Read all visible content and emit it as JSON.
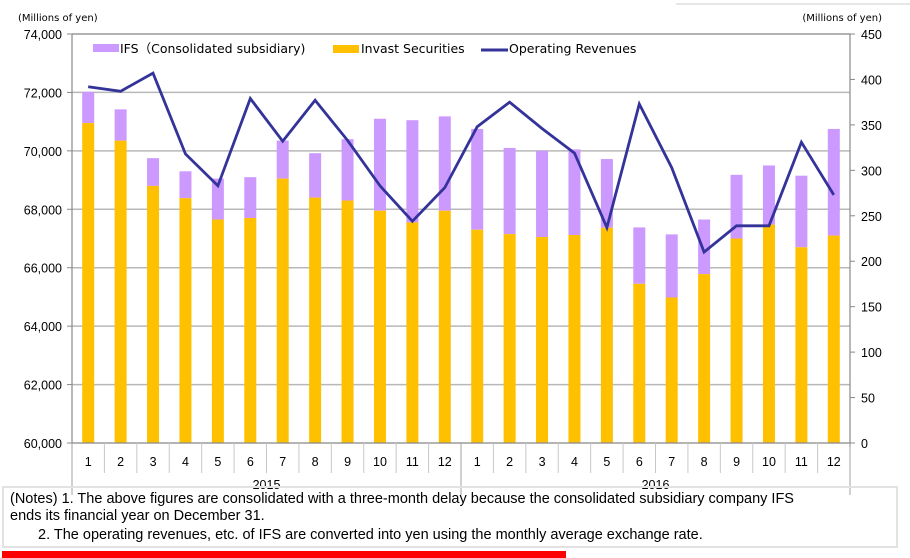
{
  "chart_data": {
    "type": "bar",
    "subtype": "stacked-bar-with-line",
    "left_axis": {
      "unit_label": "(Millions of yen)",
      "ylim": [
        60000,
        74000
      ],
      "ticks": [
        60000,
        62000,
        64000,
        66000,
        68000,
        70000,
        72000,
        74000
      ],
      "tick_labels": [
        "60,000",
        "62,000",
        "64,000",
        "66,000",
        "68,000",
        "70,000",
        "72,000",
        "74,000"
      ]
    },
    "right_axis": {
      "unit_label": "(Millions of yen)",
      "ylim": [
        0,
        450
      ],
      "ticks": [
        0,
        50,
        100,
        150,
        200,
        250,
        300,
        350,
        400,
        450
      ],
      "tick_labels": [
        "0",
        "50",
        "100",
        "150",
        "200",
        "250",
        "300",
        "350",
        "400",
        "450"
      ]
    },
    "categories": [
      "1",
      "2",
      "3",
      "4",
      "5",
      "6",
      "7",
      "8",
      "9",
      "10",
      "11",
      "12",
      "1",
      "2",
      "3",
      "4",
      "5",
      "6",
      "7",
      "8",
      "9",
      "10",
      "11",
      "12"
    ],
    "year_groups": [
      {
        "label": "2015",
        "count": 12
      },
      {
        "label": "2016",
        "count": 12
      }
    ],
    "grid": true,
    "legend_position": "top",
    "series": [
      {
        "name": "IFS（Consolidated subsidiary)",
        "kind": "bar-stack-top",
        "axis": "left",
        "color": "#cc99ff",
        "totals": [
          72020,
          71420,
          69750,
          69300,
          69050,
          69100,
          70350,
          69920,
          70400,
          71100,
          71050,
          71180,
          70750,
          70100,
          70000,
          70050,
          69720,
          67380,
          67140,
          67650,
          69180,
          69500,
          69150,
          70750
        ]
      },
      {
        "name": "Invast Securities",
        "kind": "bar-stack-base",
        "axis": "left",
        "color": "#ffc000",
        "values": [
          70950,
          70350,
          68800,
          68380,
          67650,
          67700,
          69050,
          68400,
          68300,
          67950,
          67550,
          67950,
          67300,
          67150,
          67050,
          67120,
          67370,
          65450,
          64980,
          65780,
          67000,
          67480,
          66700,
          67100
        ]
      },
      {
        "name": "Operating Revenues",
        "kind": "line",
        "axis": "right",
        "color": "#333399",
        "values": [
          392,
          387,
          407,
          318,
          283,
          379,
          332,
          377,
          333,
          283,
          244,
          281,
          348,
          375,
          346,
          319,
          237,
          373,
          303,
          210,
          239,
          239,
          331,
          273
        ]
      }
    ]
  },
  "notes": {
    "line1": "(Notes) 1. The above figures are consolidated with a three-month delay because the consolidated subsidiary company IFS",
    "line2": "ends its financial year on December 31.",
    "line3": "2. The operating revenues, etc. of IFS are converted into yen using the monthly average exchange rate."
  }
}
